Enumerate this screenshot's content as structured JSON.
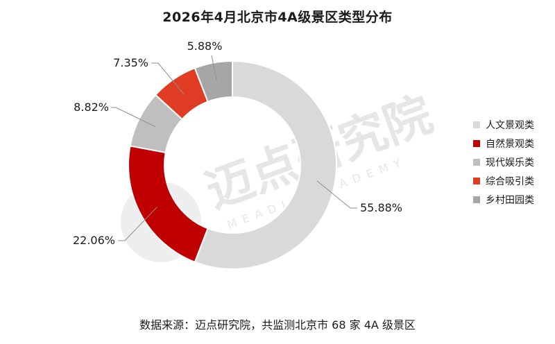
{
  "chart_data": {
    "type": "pie",
    "title": "2026年4月北京市4A级景区类型分布",
    "categories": [
      "人文景观类",
      "自然景观类",
      "现代娱乐类",
      "综合吸引类",
      "乡村田园类"
    ],
    "values": [
      55.88,
      22.06,
      8.82,
      7.35,
      5.88
    ],
    "value_labels": [
      "55.88%",
      "22.06%",
      "8.82%",
      "7.35%",
      "5.88%"
    ],
    "colors": [
      "#d9d9d9",
      "#c00000",
      "#bfbfbf",
      "#e03c23",
      "#a6a6a6"
    ],
    "donut": true,
    "legend_position": "right"
  },
  "watermark": {
    "brand": "迈点研究院",
    "subtitle": "MEADIN ACADEMY"
  },
  "footer": {
    "source_note": "数据来源：迈点研究院，共监测北京市 68 家 4A 级景区"
  }
}
